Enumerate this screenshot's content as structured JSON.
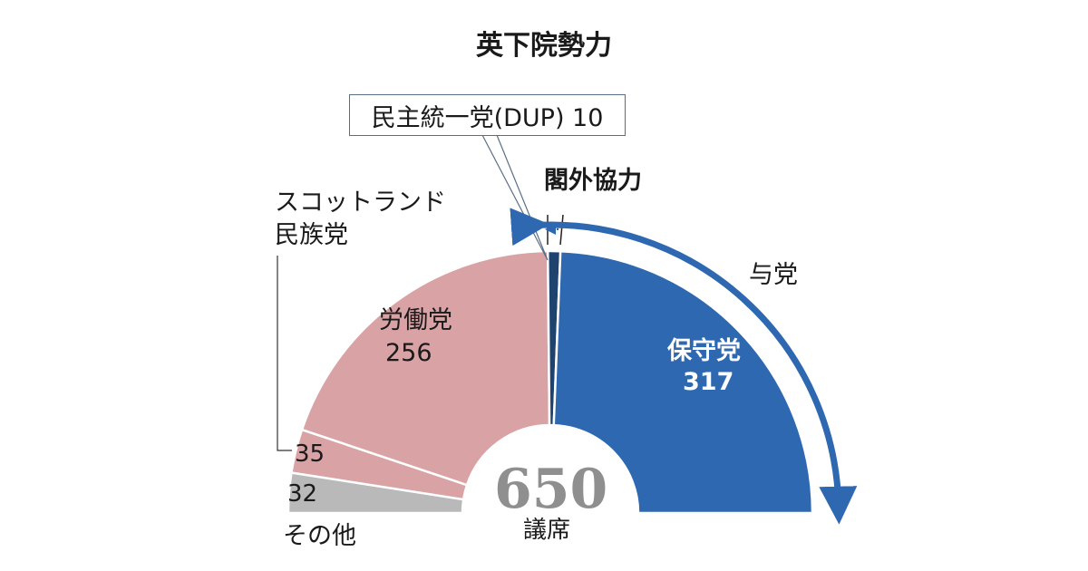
{
  "chart_data": {
    "type": "pie",
    "variant": "semicircle-donut",
    "title": "英下院勢力",
    "total": 650,
    "total_unit": "議席",
    "segments": [
      {
        "name": "その他",
        "value": 32,
        "color": "#b9b9b9"
      },
      {
        "name": "スコットランド民族党",
        "value": 35,
        "color": "#d9a3a5"
      },
      {
        "name": "労働党",
        "value": 256,
        "color": "#d9a3a5"
      },
      {
        "name": "民主統一党(DUP)",
        "value": 10,
        "color": "#1f436f"
      },
      {
        "name": "保守党",
        "value": 317,
        "color": "#2d68b1"
      }
    ],
    "annotations": {
      "dup_label": "民主統一党(DUP) 10",
      "confidence_supply": "閣外協力",
      "ruling_party": "与党",
      "snp_line1": "スコットランド",
      "snp_line2": "民族党",
      "others": "その他",
      "labour_name": "労働党",
      "labour_value": "256",
      "con_name": "保守党",
      "con_value": "317",
      "snp_value": "35",
      "others_value": "32",
      "total_value": "650",
      "total_unit": "議席"
    },
    "arrow_color": "#2d68b1"
  }
}
